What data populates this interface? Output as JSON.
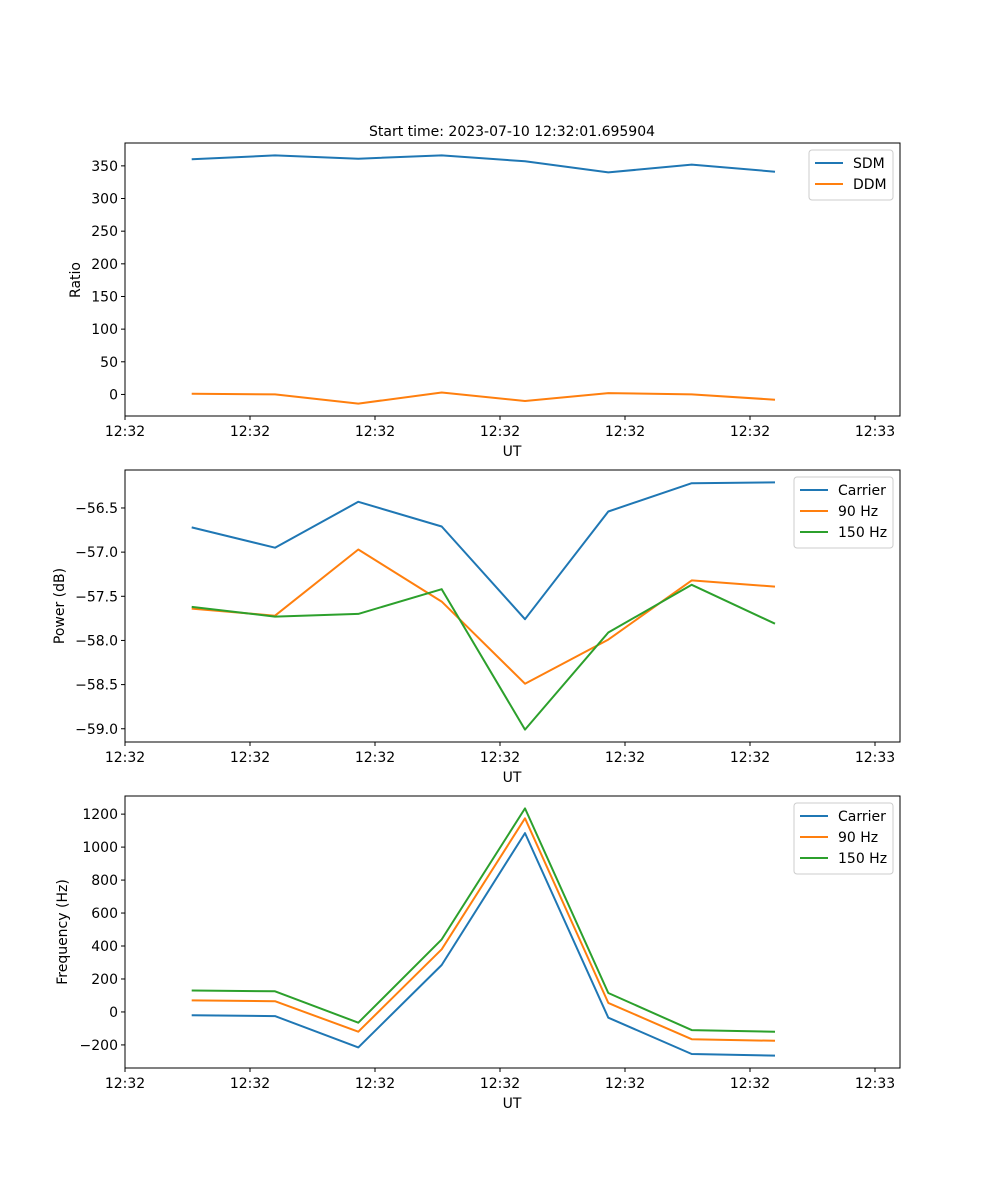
{
  "chart_data": [
    {
      "type": "line",
      "title": "Start time: 2023-07-10 12:32:01.695904",
      "xlabel": "UT",
      "ylabel": "Ratio",
      "x": [
        1,
        2,
        3,
        4,
        5,
        6,
        7,
        8
      ],
      "xlim": [
        0.2,
        9.5
      ],
      "x_ticks": [
        0.2,
        1.7,
        3.2,
        4.7,
        6.2,
        7.7,
        9.2
      ],
      "x_tick_labels": [
        "12:32",
        "12:32",
        "12:32",
        "12:32",
        "12:32",
        "12:32",
        "12:33"
      ],
      "ylim": [
        -33,
        385
      ],
      "y_ticks": [
        0,
        50,
        100,
        150,
        200,
        250,
        300,
        350
      ],
      "y_tick_labels": [
        "0",
        "50",
        "100",
        "150",
        "200",
        "250",
        "300",
        "350"
      ],
      "legend_position": "top-right",
      "series": [
        {
          "name": "SDM",
          "color": "#1f77b4",
          "values": [
            360,
            366,
            361,
            366,
            357,
            340,
            352,
            341
          ]
        },
        {
          "name": "DDM",
          "color": "#ff7f0e",
          "values": [
            1,
            0,
            -14,
            3,
            -10,
            2,
            0,
            -8
          ]
        }
      ]
    },
    {
      "type": "line",
      "title": "",
      "xlabel": "UT",
      "ylabel": "Power (dB)",
      "x": [
        1,
        2,
        3,
        4,
        5,
        6,
        7,
        8
      ],
      "xlim": [
        0.2,
        9.5
      ],
      "x_ticks": [
        0.2,
        1.7,
        3.2,
        4.7,
        6.2,
        7.7,
        9.2
      ],
      "x_tick_labels": [
        "12:32",
        "12:32",
        "12:32",
        "12:32",
        "12:32",
        "12:32",
        "12:33"
      ],
      "ylim": [
        -59.15,
        -56.07
      ],
      "y_ticks": [
        -59.0,
        -58.5,
        -58.0,
        -57.5,
        -57.0,
        -56.5
      ],
      "y_tick_labels": [
        "−59.0",
        "−58.5",
        "−58.0",
        "−57.5",
        "−57.0",
        "−56.5"
      ],
      "legend_position": "top-right",
      "series": [
        {
          "name": "Carrier",
          "color": "#1f77b4",
          "values": [
            -56.72,
            -56.95,
            -56.43,
            -56.71,
            -57.76,
            -56.54,
            -56.22,
            -56.21
          ]
        },
        {
          "name": "90 Hz",
          "color": "#ff7f0e",
          "values": [
            -57.64,
            -57.72,
            -56.97,
            -57.56,
            -58.49,
            -57.99,
            -57.32,
            -57.39
          ]
        },
        {
          "name": "150 Hz",
          "color": "#2ca02c",
          "values": [
            -57.62,
            -57.73,
            -57.7,
            -57.42,
            -59.01,
            -57.91,
            -57.37,
            -57.81
          ]
        }
      ]
    },
    {
      "type": "line",
      "title": "",
      "xlabel": "UT",
      "ylabel": "Frequency (Hz)",
      "x": [
        1,
        2,
        3,
        4,
        5,
        6,
        7,
        8
      ],
      "xlim": [
        0.2,
        9.5
      ],
      "x_ticks": [
        0.2,
        1.7,
        3.2,
        4.7,
        6.2,
        7.7,
        9.2
      ],
      "x_tick_labels": [
        "12:32",
        "12:32",
        "12:32",
        "12:32",
        "12:32",
        "12:32",
        "12:33"
      ],
      "ylim": [
        -340,
        1310
      ],
      "y_ticks": [
        -200,
        0,
        200,
        400,
        600,
        800,
        1000,
        1200
      ],
      "y_tick_labels": [
        "−200",
        "0",
        "200",
        "400",
        "600",
        "800",
        "1000",
        "1200"
      ],
      "legend_position": "top-right",
      "series": [
        {
          "name": "Carrier",
          "color": "#1f77b4",
          "values": [
            -20,
            -25,
            -215,
            285,
            1085,
            -35,
            -255,
            -265
          ]
        },
        {
          "name": "90 Hz",
          "color": "#ff7f0e",
          "values": [
            70,
            65,
            -120,
            380,
            1175,
            55,
            -165,
            -175
          ]
        },
        {
          "name": "150 Hz",
          "color": "#2ca02c",
          "values": [
            130,
            125,
            -65,
            440,
            1235,
            115,
            -110,
            -120
          ]
        }
      ]
    }
  ]
}
